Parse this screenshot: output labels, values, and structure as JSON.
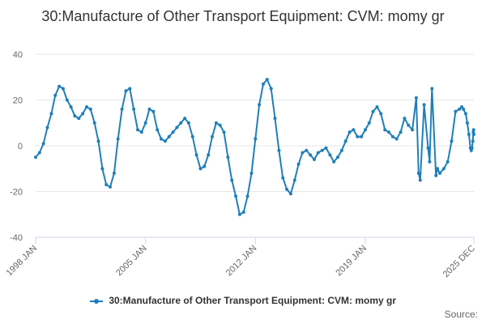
{
  "chart_data": {
    "type": "line",
    "title": "30:Manufacture of Other Transport Equipment: CVM: momy gr",
    "xlabel": "",
    "ylabel": "",
    "ylim": [
      -40,
      40
    ],
    "yticks": [
      40,
      20,
      0,
      -20,
      -40
    ],
    "xticks": [
      {
        "label": "1998 JAN",
        "t": 1998.0
      },
      {
        "label": "2005 JAN",
        "t": 2005.0
      },
      {
        "label": "2012 JAN",
        "t": 2012.0
      },
      {
        "label": "2019 JAN",
        "t": 2019.0
      },
      {
        "label": "2025 DEC",
        "t": 2025.917
      }
    ],
    "xlim": [
      1998.0,
      2025.917
    ],
    "grid": true,
    "legend": "bottom",
    "colors": {
      "series": "#1f7fb8",
      "grid": "#e6e6e6",
      "axis": "#ccd6eb"
    },
    "series": [
      {
        "name": "30:Manufacture of Other Transport Equipment: CVM: momy gr",
        "points": [
          [
            1998.0,
            -5
          ],
          [
            1998.25,
            -3
          ],
          [
            1998.5,
            1
          ],
          [
            1998.75,
            8
          ],
          [
            1999.0,
            14
          ],
          [
            1999.25,
            22
          ],
          [
            1999.5,
            26
          ],
          [
            1999.75,
            25
          ],
          [
            2000.0,
            20
          ],
          [
            2000.25,
            17
          ],
          [
            2000.5,
            13
          ],
          [
            2000.75,
            12
          ],
          [
            2001.0,
            14
          ],
          [
            2001.25,
            17
          ],
          [
            2001.5,
            16
          ],
          [
            2001.75,
            10
          ],
          [
            2002.0,
            2
          ],
          [
            2002.25,
            -10
          ],
          [
            2002.5,
            -17
          ],
          [
            2002.75,
            -18
          ],
          [
            2003.0,
            -12
          ],
          [
            2003.25,
            3
          ],
          [
            2003.5,
            16
          ],
          [
            2003.75,
            24
          ],
          [
            2004.0,
            25
          ],
          [
            2004.25,
            16
          ],
          [
            2004.5,
            7
          ],
          [
            2004.75,
            6
          ],
          [
            2005.0,
            10
          ],
          [
            2005.25,
            16
          ],
          [
            2005.5,
            15
          ],
          [
            2005.75,
            7
          ],
          [
            2006.0,
            3
          ],
          [
            2006.25,
            2
          ],
          [
            2006.5,
            4
          ],
          [
            2006.75,
            6
          ],
          [
            2007.0,
            8
          ],
          [
            2007.25,
            10
          ],
          [
            2007.5,
            12
          ],
          [
            2007.75,
            10
          ],
          [
            2008.0,
            4
          ],
          [
            2008.25,
            -4
          ],
          [
            2008.5,
            -10
          ],
          [
            2008.75,
            -9
          ],
          [
            2009.0,
            -4
          ],
          [
            2009.25,
            4
          ],
          [
            2009.5,
            10
          ],
          [
            2009.75,
            9
          ],
          [
            2010.0,
            6
          ],
          [
            2010.25,
            -5
          ],
          [
            2010.5,
            -15
          ],
          [
            2010.75,
            -22
          ],
          [
            2011.0,
            -30
          ],
          [
            2011.25,
            -29
          ],
          [
            2011.5,
            -22
          ],
          [
            2011.75,
            -12
          ],
          [
            2012.0,
            3
          ],
          [
            2012.25,
            18
          ],
          [
            2012.5,
            27
          ],
          [
            2012.75,
            29
          ],
          [
            2013.0,
            25
          ],
          [
            2013.25,
            12
          ],
          [
            2013.5,
            -2
          ],
          [
            2013.75,
            -14
          ],
          [
            2014.0,
            -19
          ],
          [
            2014.25,
            -21
          ],
          [
            2014.5,
            -15
          ],
          [
            2014.75,
            -8
          ],
          [
            2015.0,
            -3
          ],
          [
            2015.25,
            -2
          ],
          [
            2015.5,
            -4
          ],
          [
            2015.75,
            -6
          ],
          [
            2016.0,
            -3
          ],
          [
            2016.25,
            -2
          ],
          [
            2016.5,
            -1
          ],
          [
            2016.75,
            -4
          ],
          [
            2017.0,
            -7
          ],
          [
            2017.25,
            -5
          ],
          [
            2017.5,
            -2
          ],
          [
            2017.75,
            2
          ],
          [
            2018.0,
            6
          ],
          [
            2018.25,
            7
          ],
          [
            2018.5,
            4
          ],
          [
            2018.75,
            4
          ],
          [
            2019.0,
            7
          ],
          [
            2019.25,
            10
          ],
          [
            2019.5,
            15
          ],
          [
            2019.75,
            17
          ],
          [
            2020.0,
            14
          ],
          [
            2020.25,
            7
          ],
          [
            2020.5,
            6
          ],
          [
            2020.75,
            4
          ],
          [
            2021.0,
            3
          ],
          [
            2021.25,
            6
          ],
          [
            2021.5,
            12
          ],
          [
            2021.75,
            9
          ],
          [
            2022.0,
            7
          ],
          [
            2022.25,
            21
          ],
          [
            2022.4,
            -12
          ],
          [
            2022.5,
            -15
          ],
          [
            2022.75,
            18
          ],
          [
            2023.0,
            -1
          ],
          [
            2023.1,
            -7
          ],
          [
            2023.25,
            25
          ],
          [
            2023.5,
            -13
          ],
          [
            2023.6,
            -10
          ],
          [
            2023.75,
            -12
          ],
          [
            2024.0,
            -10
          ],
          [
            2024.25,
            -7
          ],
          [
            2024.5,
            2
          ],
          [
            2024.75,
            15
          ],
          [
            2025.0,
            16
          ],
          [
            2025.15,
            17
          ],
          [
            2025.25,
            16
          ],
          [
            2025.4,
            14
          ],
          [
            2025.5,
            10
          ],
          [
            2025.6,
            5
          ],
          [
            2025.7,
            -1
          ],
          [
            2025.75,
            -2
          ],
          [
            2025.8,
            -1
          ],
          [
            2025.85,
            2
          ],
          [
            2025.88,
            6
          ],
          [
            2025.9,
            7
          ],
          [
            2025.917,
            5
          ]
        ]
      }
    ],
    "source_label": "Source:"
  }
}
